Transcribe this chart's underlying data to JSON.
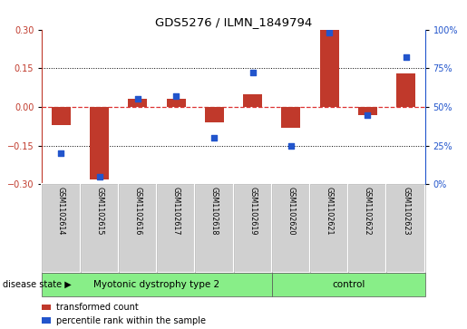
{
  "title": "GDS5276 / ILMN_1849794",
  "samples": [
    "GSM1102614",
    "GSM1102615",
    "GSM1102616",
    "GSM1102617",
    "GSM1102618",
    "GSM1102619",
    "GSM1102620",
    "GSM1102621",
    "GSM1102622",
    "GSM1102623"
  ],
  "red_bars": [
    -0.07,
    -0.28,
    0.03,
    0.03,
    -0.06,
    0.05,
    -0.08,
    0.3,
    -0.03,
    0.13
  ],
  "blue_dots_pct": [
    20,
    5,
    55,
    57,
    30,
    72,
    25,
    98,
    45,
    82
  ],
  "ylim_left": [
    -0.3,
    0.3
  ],
  "ylim_right": [
    0,
    100
  ],
  "yticks_left": [
    -0.3,
    -0.15,
    0,
    0.15,
    0.3
  ],
  "yticks_right": [
    0,
    25,
    50,
    75,
    100
  ],
  "bar_color": "#C0392B",
  "dot_color": "#2255CC",
  "zero_line_color": "#DD3333",
  "grid_line_color": "#000000",
  "group1_label": "Myotonic dystrophy type 2",
  "group2_label": "control",
  "group1_count": 6,
  "group2_count": 4,
  "disease_state_label": "disease state",
  "legend_red": "transformed count",
  "legend_blue": "percentile rank within the sample",
  "label_box_color": "#D0D0D0",
  "group_box_color": "#88EE88"
}
